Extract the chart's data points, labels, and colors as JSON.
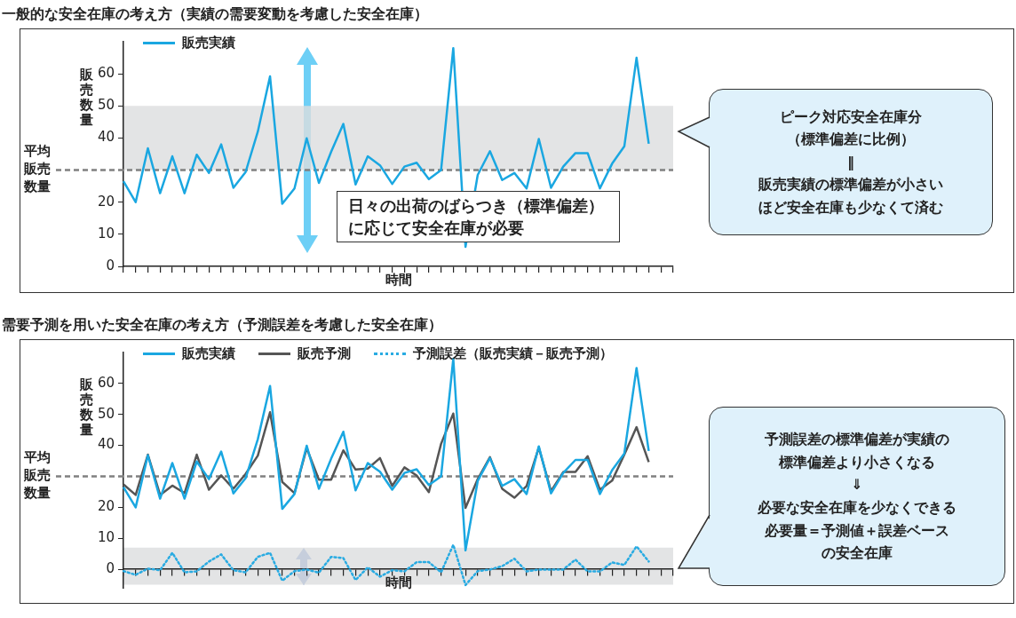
{
  "chart_data": [
    {
      "type": "line",
      "title": "一般的な安全在庫の考え方（実績の需要変動を考慮した安全在庫）",
      "xlabel": "時間",
      "ylabel": "販売数量",
      "categories": [
        null,
        null,
        null,
        null,
        null,
        null,
        null,
        null,
        null,
        null,
        null,
        null,
        null,
        null,
        null,
        null,
        null,
        null,
        null,
        null,
        null,
        null,
        null,
        null,
        null,
        null,
        null,
        null,
        null,
        null,
        null,
        null,
        null,
        null,
        null,
        null,
        null,
        null,
        null,
        null,
        null,
        null,
        null,
        null,
        null,
        null
      ],
      "series": [
        {
          "name": "販売実績",
          "color": "#1aa7e1",
          "values": [
            26.5,
            20,
            36.8,
            22.8,
            34.3,
            22.8,
            34.8,
            29.1,
            38,
            24.5,
            29.4,
            42,
            59.2,
            19.5,
            24.3,
            39.9,
            26,
            35.7,
            44.4,
            25.5,
            34.3,
            31.5,
            25.7,
            31.1,
            32.3,
            27.2,
            30,
            68,
            6.1,
            28.5,
            35.9,
            26.9,
            29.1,
            24.3,
            39.7,
            24.5,
            31.1,
            35.3,
            35.3,
            24.3,
            32,
            37.4,
            65,
            38.2,
            null,
            null
          ]
        }
      ],
      "ylim": [
        0,
        70
      ],
      "yticks": [
        0,
        10,
        20,
        {
          "value": 30,
          "label": null
        },
        40,
        50,
        60
      ],
      "tick_labels": "y",
      "legend": "top left",
      "bands": [
        {
          "axis": "y",
          "from": 30,
          "to": 50,
          "color": "#dcdddf"
        }
      ],
      "ref_lines": [
        {
          "axis": "y",
          "value": 30,
          "label": "平均販売数量",
          "color": "#808080",
          "line_style": "dashed"
        }
      ],
      "annotations": [
        "日々の出荷のばらつき（標準偏差）に応じて安全在庫が必要",
        "ピーク対応安全在庫分",
        "（標準偏差に比例）",
        "‖",
        "販売実績の標準偏差が小さい",
        "ほど安全在庫も少なくて済む"
      ]
    },
    {
      "type": "line",
      "title": "需要予測を用いた安全在庫の考え方（予測誤差を考慮した安全在庫）",
      "xlabel": "時間",
      "ylabel": "販売数量",
      "categories": [
        null,
        null,
        null,
        null,
        null,
        null,
        null,
        null,
        null,
        null,
        null,
        null,
        null,
        null,
        null,
        null,
        null,
        null,
        null,
        null,
        null,
        null,
        null,
        null,
        null,
        null,
        null,
        null,
        null,
        null,
        null,
        null,
        null,
        null,
        null,
        null,
        null,
        null,
        null,
        null,
        null,
        null,
        null,
        null,
        null,
        null
      ],
      "series": [
        {
          "name": "販売実績",
          "color": "#1aa7e1",
          "values": [
            26.5,
            20,
            36.8,
            22.8,
            34.3,
            22.8,
            34.8,
            29.1,
            38,
            24.5,
            29.4,
            42,
            59.2,
            19.5,
            24.3,
            39.9,
            26,
            35.7,
            44.4,
            25.5,
            34.3,
            31.5,
            25.7,
            31.1,
            32.3,
            27.2,
            30,
            68,
            6.1,
            28.5,
            35.9,
            26.9,
            29.1,
            24.3,
            39.7,
            24.5,
            31.1,
            35.3,
            35.3,
            24.3,
            32,
            37.4,
            65,
            38.2,
            null,
            null
          ]
        },
        {
          "name": "販売予測",
          "color": "#555555",
          "values": [
            27.4,
            24,
            37,
            24,
            27,
            24.6,
            37,
            25.7,
            30.3,
            26,
            30.8,
            36.7,
            50.7,
            28.2,
            24.6,
            39.1,
            28.9,
            28.9,
            38.4,
            32.2,
            32.5,
            35.9,
            26.9,
            32.9,
            30.3,
            24.9,
            40.5,
            50.3,
            19.8,
            29.1,
            36.2,
            26,
            23.1,
            26.9,
            39.3,
            25.2,
            31.4,
            31.4,
            36.5,
            25.7,
            28.6,
            37,
            45.9,
            34.6,
            null,
            null
          ]
        },
        {
          "name": "予測誤差（販売実績－販売予測）",
          "color": "#29abe2",
          "line_style": "dotted",
          "values": [
            -0.6,
            -1.8,
            0.2,
            -0.3,
            5.3,
            -1,
            -0.7,
            2.5,
            4.8,
            -0.3,
            -1,
            4,
            5.3,
            -3.7,
            -0.6,
            -0.1,
            -1.1,
            4,
            3.6,
            -3.5,
            0.6,
            -2.4,
            -0.3,
            -0.7,
            2.3,
            2.3,
            -1,
            7.9,
            -5.1,
            -0.6,
            -0.1,
            1,
            3.4,
            -0.7,
            -0.1,
            -0.1,
            -0.1,
            3.1,
            -0.7,
            -0.7,
            2.2,
            1.4,
            7.4,
            2.5,
            null,
            null
          ]
        }
      ],
      "ylim": [
        -6,
        70
      ],
      "yticks": [
        0,
        10,
        20,
        {
          "value": 30,
          "label": null
        },
        40,
        50,
        60
      ],
      "tick_labels": "y",
      "legend": "top left",
      "bands": [
        {
          "axis": "y",
          "from": -5,
          "to": 7,
          "color": "#dcdddf"
        }
      ],
      "ref_lines": [
        {
          "axis": "y",
          "value": 30,
          "label": "平均販売数量",
          "color": "#808080",
          "line_style": "dashed"
        }
      ],
      "annotations": [
        "予測誤差の標準偏差が実績の",
        "標準偏差より小さくなる",
        "⇓",
        "必要な安全在庫を少なくできる",
        "必要量＝予測値＋誤差ベース",
        "の安全在庫"
      ]
    }
  ]
}
